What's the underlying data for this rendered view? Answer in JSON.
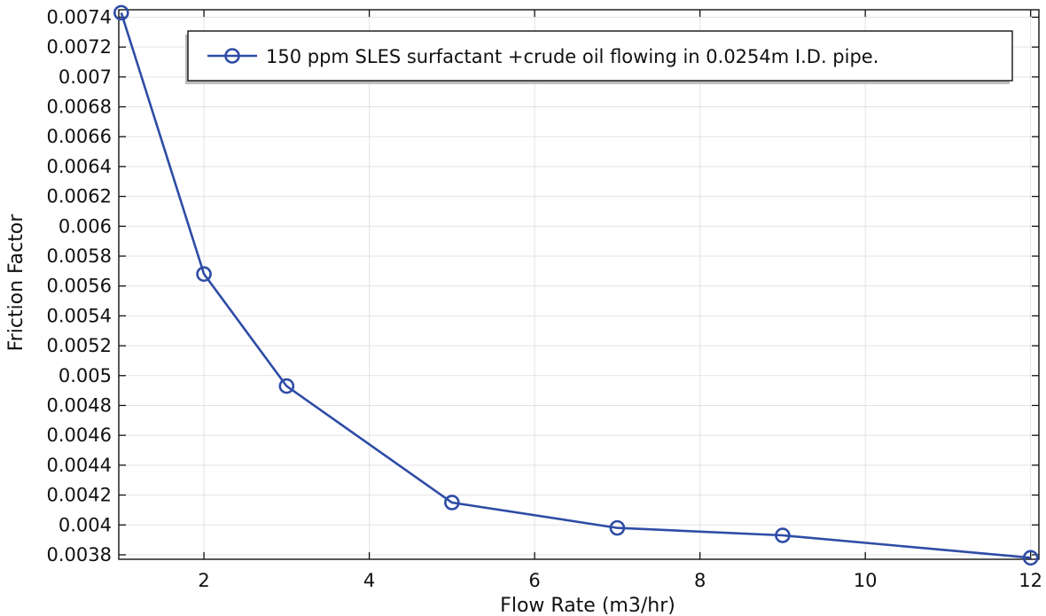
{
  "chart_data": {
    "type": "line",
    "title": "",
    "xlabel": "Flow Rate (m3/hr)",
    "ylabel": "Friction Factor",
    "xlim": [
      0.97,
      12.1
    ],
    "ylim": [
      0.00377,
      0.00745
    ],
    "grid": true,
    "legend_position": "top-right",
    "x_ticks": [
      2,
      4,
      6,
      8,
      10,
      12
    ],
    "x_tick_labels": [
      "2",
      "4",
      "6",
      "8",
      "10",
      "12"
    ],
    "y_ticks": [
      0.0038,
      0.004,
      0.0042,
      0.0044,
      0.0046,
      0.0048,
      0.005,
      0.0052,
      0.0054,
      0.0056,
      0.0058,
      0.006,
      0.0062,
      0.0064,
      0.0066,
      0.0068,
      0.007,
      0.0072,
      0.0074
    ],
    "y_tick_labels": [
      "0.0038",
      "0.004",
      "0.0042",
      "0.0044",
      "0.0046",
      "0.0048",
      "0.005",
      "0.0052",
      "0.0054",
      "0.0056",
      "0.0058",
      "0.006",
      "0.0062",
      "0.0064",
      "0.0066",
      "0.0068",
      "0.007",
      "0.0072",
      "0.0074"
    ],
    "series": [
      {
        "name": "150 ppm SLES surfactant +crude oil flowing in 0.0254m I.D. pipe.",
        "color": "#2e4ca6",
        "marker": "circle",
        "x": [
          1,
          2,
          3,
          5,
          7,
          9,
          12
        ],
        "y": [
          0.00743,
          0.00568,
          0.00493,
          0.00415,
          0.00398,
          0.00393,
          0.00378
        ]
      }
    ]
  }
}
